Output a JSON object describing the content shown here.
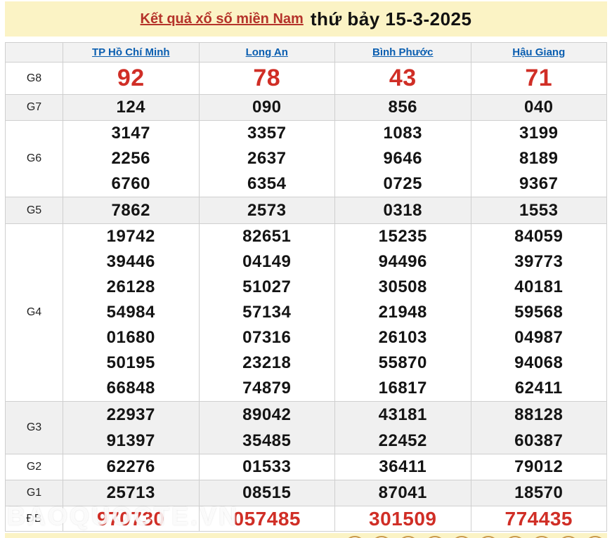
{
  "page": {
    "title_link": "Kết quả xổ số miền Nam",
    "title_date": "thứ bảy 15-3-2025",
    "watermark": "BAOQUOCTE.VN"
  },
  "table": {
    "columns": [
      "TP Hồ Chí Minh",
      "Long An",
      "Bình Phước",
      "Hậu Giang"
    ],
    "rows": [
      {
        "key": "g8",
        "label": "G8",
        "values": [
          [
            "92"
          ],
          [
            "78"
          ],
          [
            "43"
          ],
          [
            "71"
          ]
        ]
      },
      {
        "key": "g7",
        "label": "G7",
        "values": [
          [
            "124"
          ],
          [
            "090"
          ],
          [
            "856"
          ],
          [
            "040"
          ]
        ]
      },
      {
        "key": "g6",
        "label": "G6",
        "values": [
          [
            "3147",
            "2256",
            "6760"
          ],
          [
            "3357",
            "2637",
            "6354"
          ],
          [
            "1083",
            "9646",
            "0725"
          ],
          [
            "3199",
            "8189",
            "9367"
          ]
        ]
      },
      {
        "key": "g5",
        "label": "G5",
        "values": [
          [
            "7862"
          ],
          [
            "2573"
          ],
          [
            "0318"
          ],
          [
            "1553"
          ]
        ]
      },
      {
        "key": "g4",
        "label": "G4",
        "values": [
          [
            "19742",
            "39446",
            "26128",
            "54984",
            "01680",
            "50195",
            "66848"
          ],
          [
            "82651",
            "04149",
            "51027",
            "57134",
            "07316",
            "23218",
            "74879"
          ],
          [
            "15235",
            "94496",
            "30508",
            "21948",
            "26103",
            "55870",
            "16817"
          ],
          [
            "84059",
            "39773",
            "40181",
            "59568",
            "04987",
            "94068",
            "62411"
          ]
        ]
      },
      {
        "key": "g3",
        "label": "G3",
        "values": [
          [
            "22937",
            "91397"
          ],
          [
            "89042",
            "35485"
          ],
          [
            "43181",
            "22452"
          ],
          [
            "88128",
            "60387"
          ]
        ]
      },
      {
        "key": "g2",
        "label": "G2",
        "values": [
          [
            "62276"
          ],
          [
            "01533"
          ],
          [
            "36411"
          ],
          [
            "79012"
          ]
        ]
      },
      {
        "key": "g1",
        "label": "G1",
        "values": [
          [
            "25713"
          ],
          [
            "08515"
          ],
          [
            "87041"
          ],
          [
            "18570"
          ]
        ]
      },
      {
        "key": "db",
        "label": "ĐB",
        "values": [
          [
            "970730"
          ],
          [
            "057485"
          ],
          [
            "301509"
          ],
          [
            "774435"
          ]
        ]
      }
    ]
  },
  "colors": {
    "banner_bg": "#fbf3c5",
    "title_red": "#b5332a",
    "link_blue": "#0a5eb0",
    "number_red": "#d02e26",
    "row_alt": "#f0f0f0",
    "border": "#cfcfcf",
    "ball": "#c99a4b"
  },
  "footer": {
    "ball_count": 10
  }
}
